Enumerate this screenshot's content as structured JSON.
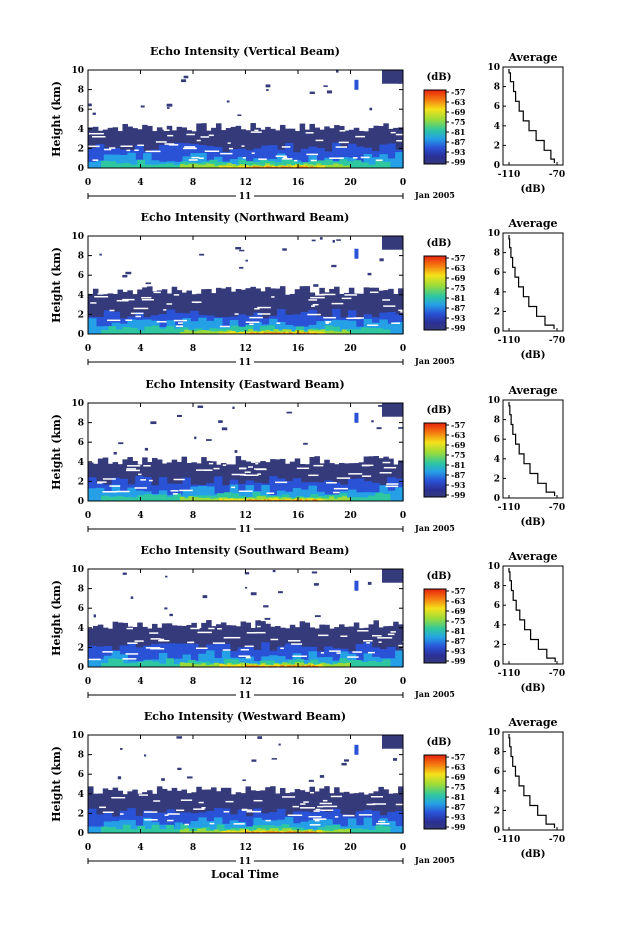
{
  "chart_data": {
    "type": "heatmap",
    "panels": [
      {
        "title": "Echo Intensity (Vertical Beam)",
        "profile_title": "Average",
        "profile_x": [
          -110,
          -108.8,
          -106.2,
          -104.5,
          -101.5,
          -98.1,
          -93.3,
          -87.4,
          -80.7,
          -75.1,
          -72.2
        ],
        "profile_h": [
          9.8,
          9.0,
          8.0,
          7.0,
          6.0,
          5.0,
          4.0,
          3.0,
          2.0,
          1.0,
          0.2
        ],
        "cloud": {
          "top": 4.3,
          "upper": [
            8.6,
            10.0
          ],
          "upper_x": [
            1.6,
            3.0
          ]
        }
      },
      {
        "title": "Echo Intensity (Northward Beam)",
        "profile_title": "Average",
        "profile_x": [
          -110,
          -109.5,
          -108.4,
          -107.0,
          -105.0,
          -102.0,
          -98.0,
          -93.5,
          -87.0,
          -80.0,
          -72.5
        ],
        "profile_h": [
          9.8,
          9.0,
          8.0,
          7.0,
          6.0,
          5.0,
          4.0,
          3.0,
          2.0,
          1.0,
          0.2
        ],
        "cloud": {
          "top": 4.6,
          "upper": [
            8.6,
            10.0
          ],
          "upper_x": [
            1.8,
            2.7
          ]
        }
      },
      {
        "title": "Echo Intensity (Eastward Beam)",
        "profile_title": "Average",
        "profile_x": [
          -110,
          -109.3,
          -108.2,
          -106.8,
          -104.5,
          -101.5,
          -97.5,
          -92.5,
          -86.0,
          -79.0,
          -72.0
        ],
        "profile_h": [
          9.8,
          9.0,
          8.0,
          7.0,
          6.0,
          5.0,
          4.0,
          3.0,
          2.0,
          1.0,
          0.2
        ],
        "cloud": {
          "top": 4.3,
          "upper": [
            8.6,
            10.0
          ],
          "upper_x": [
            1.8,
            3.0
          ]
        }
      },
      {
        "title": "Echo Intensity (Southward Beam)",
        "profile_title": "Average",
        "profile_x": [
          -110,
          -109.2,
          -108.0,
          -106.5,
          -104.0,
          -101.0,
          -97.0,
          -92.0,
          -85.5,
          -78.5,
          -71.5
        ],
        "profile_h": [
          9.8,
          9.0,
          8.0,
          7.0,
          6.0,
          5.0,
          4.0,
          3.0,
          2.0,
          1.0,
          0.2
        ],
        "cloud": {
          "top": 4.5,
          "upper": [
            8.6,
            10.0
          ],
          "upper_x": [
            1.7,
            2.8
          ]
        }
      },
      {
        "title": "Echo Intensity (Westward Beam)",
        "profile_title": "Average",
        "profile_x": [
          -110,
          -109.4,
          -108.3,
          -106.9,
          -104.6,
          -101.6,
          -97.6,
          -92.6,
          -86.1,
          -79.1,
          -72.1
        ],
        "profile_h": [
          9.8,
          9.0,
          8.0,
          7.0,
          6.0,
          5.0,
          4.0,
          3.0,
          2.0,
          1.0,
          0.2
        ],
        "cloud": {
          "top": 4.5,
          "upper": [
            8.6,
            10.0
          ],
          "upper_x": [
            1.6,
            3.0
          ]
        }
      }
    ],
    "ylabel": "Height (km)",
    "y_ticks": [
      "0",
      "2",
      "4",
      "6",
      "8",
      "10"
    ],
    "ylim": [
      0,
      10
    ],
    "x_ticks": [
      "0",
      "4",
      "8",
      "12",
      "16",
      "20",
      "0"
    ],
    "xlim": [
      0,
      24
    ],
    "date_label": "11",
    "date_suffix": "Jan 2005",
    "xlabel": "Local Time",
    "colorbar": {
      "unit": "(dB)",
      "labels": [
        "-57",
        "-63",
        "-69",
        "-75",
        "-81",
        "-87",
        "-93",
        "-99"
      ],
      "colors": [
        "#e8220d",
        "#f47a10",
        "#f5e11a",
        "#9bdc3a",
        "#2fc7a0",
        "#25a0e6",
        "#2a52d6",
        "#2b2f96",
        "#343a7a"
      ]
    },
    "profile_xlim": [
      -115,
      -65
    ],
    "profile_xticks": [
      "-110",
      "-70"
    ],
    "profile_xlabel": "(dB)"
  }
}
